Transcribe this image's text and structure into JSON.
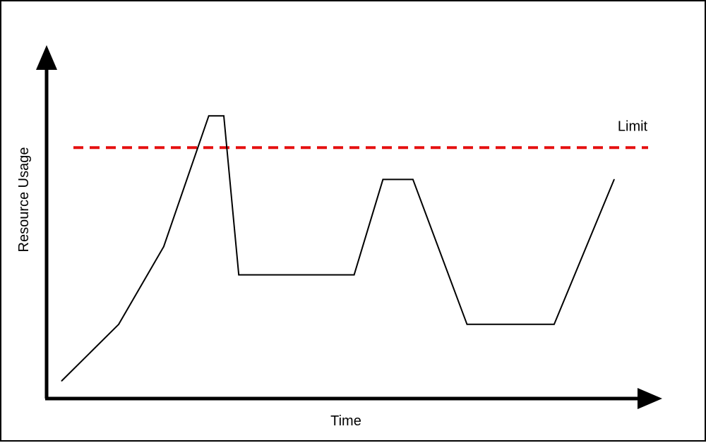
{
  "chart_data": {
    "type": "line",
    "title": "",
    "xlabel": "Time",
    "ylabel": "Resource Usage",
    "axes_ticks": false,
    "grid": false,
    "series": [
      {
        "x": [
          0,
          9.5,
          17,
          24.5,
          27,
          29.5,
          48.7,
          53.5,
          58.5,
          67.5,
          82,
          92
        ],
        "y": [
          5,
          21,
          43,
          80,
          80,
          35,
          35,
          62,
          62,
          21,
          21,
          62
        ],
        "color": "#000000"
      }
    ],
    "limit": {
      "label": "Limit",
      "y": 71,
      "style": "dashed",
      "color": "#e51010"
    },
    "xlim": [
      -2.5,
      100
    ],
    "ylim": [
      0,
      100
    ]
  }
}
